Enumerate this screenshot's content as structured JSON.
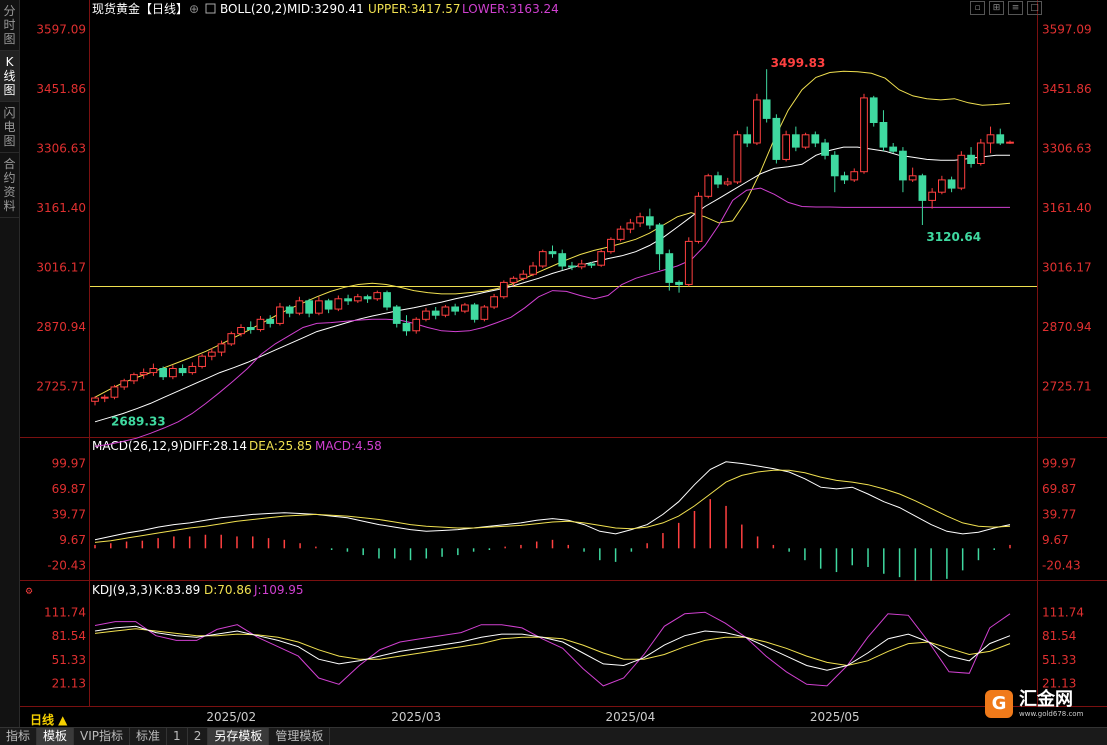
{
  "sidebar": {
    "tabs": [
      {
        "label": "分时图",
        "active": false
      },
      {
        "label": "K线图",
        "active": true
      },
      {
        "label": "闪电图",
        "active": false
      },
      {
        "label": "合约资料",
        "active": false
      }
    ]
  },
  "header": {
    "instrument": "现货黄金【日线】",
    "boll": "BOLL(20,2)",
    "mid": "MID:3290.41",
    "upper": "UPPER:3417.57",
    "lower": "LOWER:3163.24"
  },
  "macd_header": {
    "name": "MACD(26,12,9)",
    "diff": "DIFF:28.14",
    "dea": "DEA:25.85",
    "macd": "MACD:4.58"
  },
  "kdj_header": {
    "name": "KDJ(9,3,3)",
    "k": "K:83.89",
    "d": "D:70.86",
    "j": "J:109.95"
  },
  "period_label": "日线 ▲",
  "bottom_tabs": [
    {
      "label": "指标",
      "active": false
    },
    {
      "label": "模板",
      "active": true
    },
    {
      "label": "VIP指标",
      "active": false
    },
    {
      "label": "标准",
      "active": false
    },
    {
      "label": "1",
      "active": false
    },
    {
      "label": "2",
      "active": false
    },
    {
      "label": "另存模板",
      "active": true
    },
    {
      "label": "管理模板",
      "active": false
    }
  ],
  "logo": {
    "badge": "G",
    "name": "汇金网",
    "url": "www.gold678.com"
  },
  "colors": {
    "up": "#ff4040",
    "down": "#3fd9a0",
    "upper": "#f0e050",
    "mid": "#ffffff",
    "lower": "#d040d0",
    "diff": "#ffffff",
    "dea": "#f0e050",
    "k": "#ffffff",
    "d": "#f0e050",
    "j": "#d040d0",
    "axis": "#e03030"
  },
  "chart_data": [
    {
      "type": "candlestick",
      "title": "现货黄金【日线】",
      "ylim": [
        2620,
        3620
      ],
      "yticks": [
        "3597.09",
        "3451.86",
        "3306.63",
        "3161.40",
        "3016.17",
        "2870.94",
        "2725.71"
      ],
      "xticks": [
        "2025/02",
        "2025/03",
        "2025/04",
        "2025/05"
      ],
      "annotations": {
        "high": "3499.83",
        "low_start": "2689.33",
        "low_recent": "3120.64"
      },
      "hline": 2970,
      "candles": [
        [
          2690,
          2698,
          2680,
          2702
        ],
        [
          2698,
          2700,
          2688,
          2706
        ],
        [
          2700,
          2725,
          2695,
          2730
        ],
        [
          2725,
          2740,
          2718,
          2745
        ],
        [
          2740,
          2755,
          2732,
          2760
        ],
        [
          2755,
          2760,
          2745,
          2770
        ],
        [
          2760,
          2770,
          2752,
          2782
        ],
        [
          2770,
          2750,
          2742,
          2775
        ],
        [
          2750,
          2770,
          2744,
          2778
        ],
        [
          2770,
          2760,
          2752,
          2780
        ],
        [
          2760,
          2775,
          2755,
          2785
        ],
        [
          2775,
          2800,
          2770,
          2805
        ],
        [
          2800,
          2810,
          2790,
          2820
        ],
        [
          2810,
          2830,
          2800,
          2838
        ],
        [
          2830,
          2855,
          2825,
          2860
        ],
        [
          2855,
          2870,
          2848,
          2878
        ],
        [
          2870,
          2865,
          2855,
          2885
        ],
        [
          2865,
          2890,
          2860,
          2898
        ],
        [
          2890,
          2880,
          2870,
          2900
        ],
        [
          2880,
          2920,
          2875,
          2930
        ],
        [
          2920,
          2905,
          2895,
          2925
        ],
        [
          2905,
          2935,
          2900,
          2945
        ],
        [
          2935,
          2905,
          2895,
          2940
        ],
        [
          2905,
          2935,
          2900,
          2945
        ],
        [
          2935,
          2915,
          2905,
          2940
        ],
        [
          2915,
          2940,
          2910,
          2948
        ],
        [
          2940,
          2935,
          2925,
          2950
        ],
        [
          2935,
          2945,
          2930,
          2952
        ],
        [
          2945,
          2940,
          2930,
          2950
        ],
        [
          2940,
          2955,
          2935,
          2960
        ],
        [
          2955,
          2920,
          2912,
          2960
        ],
        [
          2920,
          2880,
          2870,
          2925
        ],
        [
          2880,
          2862,
          2850,
          2900
        ],
        [
          2862,
          2890,
          2855,
          2895
        ],
        [
          2890,
          2910,
          2885,
          2918
        ],
        [
          2910,
          2900,
          2890,
          2920
        ],
        [
          2900,
          2920,
          2895,
          2925
        ],
        [
          2920,
          2910,
          2900,
          2928
        ],
        [
          2910,
          2925,
          2905,
          2930
        ],
        [
          2925,
          2890,
          2882,
          2930
        ],
        [
          2890,
          2920,
          2885,
          2925
        ],
        [
          2920,
          2945,
          2915,
          2952
        ],
        [
          2945,
          2980,
          2940,
          2985
        ],
        [
          2980,
          2990,
          2972,
          2995
        ],
        [
          2990,
          3000,
          2985,
          3010
        ],
        [
          3000,
          3020,
          2995,
          3030
        ],
        [
          3020,
          3055,
          3015,
          3060
        ],
        [
          3055,
          3050,
          3040,
          3070
        ],
        [
          3050,
          3020,
          3010,
          3060
        ],
        [
          3020,
          3018,
          3010,
          3030
        ],
        [
          3018,
          3025,
          3012,
          3035
        ],
        [
          3025,
          3022,
          3015,
          3030
        ],
        [
          3022,
          3055,
          3018,
          3060
        ],
        [
          3055,
          3085,
          3050,
          3090
        ],
        [
          3085,
          3110,
          3080,
          3118
        ],
        [
          3110,
          3125,
          3100,
          3135
        ],
        [
          3125,
          3140,
          3115,
          3150
        ],
        [
          3140,
          3120,
          3110,
          3160
        ],
        [
          3120,
          3050,
          3010,
          3125
        ],
        [
          3050,
          2980,
          2960,
          3060
        ],
        [
          2980,
          2975,
          2955,
          2985
        ],
        [
          2975,
          3080,
          2970,
          3090
        ],
        [
          3080,
          3190,
          3075,
          3200
        ],
        [
          3190,
          3240,
          3185,
          3245
        ],
        [
          3240,
          3220,
          3210,
          3250
        ],
        [
          3220,
          3225,
          3215,
          3235
        ],
        [
          3225,
          3340,
          3220,
          3350
        ],
        [
          3340,
          3320,
          3310,
          3360
        ],
        [
          3320,
          3425,
          3315,
          3440
        ],
        [
          3425,
          3380,
          3370,
          3500
        ],
        [
          3380,
          3280,
          3270,
          3390
        ],
        [
          3280,
          3340,
          3275,
          3350
        ],
        [
          3340,
          3310,
          3300,
          3360
        ],
        [
          3310,
          3340,
          3305,
          3345
        ],
        [
          3340,
          3320,
          3310,
          3348
        ],
        [
          3320,
          3290,
          3280,
          3330
        ],
        [
          3290,
          3240,
          3200,
          3300
        ],
        [
          3240,
          3230,
          3220,
          3250
        ],
        [
          3230,
          3250,
          3225,
          3258
        ],
        [
          3250,
          3430,
          3245,
          3440
        ],
        [
          3430,
          3370,
          3360,
          3435
        ],
        [
          3370,
          3310,
          3300,
          3400
        ],
        [
          3310,
          3300,
          3295,
          3320
        ],
        [
          3300,
          3230,
          3200,
          3310
        ],
        [
          3230,
          3240,
          3225,
          3260
        ],
        [
          3240,
          3180,
          3120,
          3245
        ],
        [
          3180,
          3200,
          3160,
          3210
        ],
        [
          3200,
          3230,
          3195,
          3240
        ],
        [
          3230,
          3210,
          3200,
          3238
        ],
        [
          3210,
          3290,
          3205,
          3300
        ],
        [
          3290,
          3270,
          3260,
          3310
        ],
        [
          3270,
          3320,
          3265,
          3330
        ],
        [
          3320,
          3340,
          3295,
          3360
        ],
        [
          3340,
          3320,
          3315,
          3355
        ],
        [
          3320,
          3322,
          3318,
          3326
        ]
      ],
      "boll_upper": [
        2700,
        2718,
        2735,
        2748,
        2760,
        2772,
        2785,
        2798,
        2812,
        2828,
        2845,
        2862,
        2880,
        2898,
        2915,
        2930,
        2945,
        2958,
        2968,
        2975,
        2978,
        2975,
        2968,
        2960,
        2955,
        2952,
        2952,
        2955,
        2958,
        2965,
        2975,
        2990,
        3005,
        3020,
        3035,
        3048,
        3058,
        3066,
        3075,
        3085,
        3100,
        3120,
        3140,
        3150,
        3140,
        3125,
        3130,
        3180,
        3250,
        3330,
        3400,
        3450,
        3480,
        3492,
        3495,
        3494,
        3490,
        3478,
        3450,
        3435,
        3428,
        3425,
        3428,
        3418,
        3412,
        3414,
        3417
      ],
      "boll_mid": [
        2640,
        2650,
        2660,
        2672,
        2685,
        2700,
        2715,
        2730,
        2745,
        2760,
        2772,
        2785,
        2800,
        2815,
        2830,
        2845,
        2860,
        2870,
        2880,
        2890,
        2898,
        2905,
        2912,
        2918,
        2925,
        2932,
        2940,
        2947,
        2955,
        2962,
        2970,
        2980,
        2990,
        3002,
        3012,
        3022,
        3030,
        3038,
        3045,
        3055,
        3070,
        3090,
        3115,
        3140,
        3165,
        3185,
        3205,
        3225,
        3245,
        3258,
        3262,
        3268,
        3290,
        3302,
        3310,
        3310,
        3305,
        3300,
        3290,
        3285,
        3280,
        3278,
        3278,
        3282,
        3286,
        3290,
        3290
      ],
      "boll_lower": [
        2580,
        2585,
        2592,
        2600,
        2612,
        2625,
        2640,
        2660,
        2685,
        2712,
        2740,
        2770,
        2805,
        2830,
        2850,
        2870,
        2880,
        2882,
        2885,
        2888,
        2890,
        2890,
        2888,
        2880,
        2870,
        2862,
        2860,
        2862,
        2870,
        2882,
        2895,
        2918,
        2945,
        2960,
        2958,
        2948,
        2940,
        2948,
        2975,
        2990,
        3000,
        3010,
        3020,
        3035,
        3070,
        3120,
        3180,
        3205,
        3210,
        3195,
        3175,
        3165,
        3164,
        3164,
        3163,
        3163,
        3163,
        3163,
        3163,
        3163,
        3163,
        3163,
        3163,
        3163,
        3163,
        3163,
        3163
      ],
      "macd": {
        "ylim": [
          -35,
          110
        ],
        "yticks": [
          "99.97",
          "69.87",
          "39.77",
          "9.67",
          "-20.43"
        ],
        "diff": [
          10,
          14,
          18,
          21,
          25,
          28,
          30,
          33,
          36,
          38,
          40,
          41,
          42,
          41,
          40,
          38,
          36,
          32,
          28,
          25,
          22,
          20,
          21,
          22,
          24,
          26,
          28,
          30,
          33,
          35,
          33,
          28,
          20,
          17,
          22,
          28,
          40,
          55,
          75,
          93,
          102,
          100,
          97,
          94,
          90,
          82,
          72,
          70,
          72,
          64,
          55,
          48,
          38,
          28,
          20,
          17,
          19,
          24,
          28
        ],
        "dea": [
          7,
          9,
          12,
          15,
          18,
          21,
          24,
          26,
          29,
          32,
          34,
          36,
          38,
          39,
          40,
          39,
          38,
          36,
          34,
          31,
          28,
          26,
          25,
          24,
          24,
          25,
          26,
          27,
          29,
          31,
          32,
          30,
          27,
          24,
          23,
          25,
          30,
          38,
          50,
          64,
          78,
          86,
          90,
          92,
          92,
          89,
          84,
          80,
          78,
          75,
          70,
          64,
          56,
          47,
          38,
          30,
          26,
          25,
          26
        ],
        "hist": [
          4,
          6,
          8,
          9,
          12,
          14,
          14,
          16,
          16,
          14,
          14,
          12,
          10,
          6,
          2,
          -2,
          -4,
          -8,
          -12,
          -12,
          -14,
          -12,
          -10,
          -8,
          -4,
          -2,
          2,
          4,
          8,
          10,
          4,
          -4,
          -14,
          -16,
          -4,
          6,
          18,
          30,
          44,
          58,
          50,
          28,
          14,
          4,
          -4,
          -14,
          -24,
          -28,
          -20,
          -22,
          -30,
          -34,
          -38,
          -38,
          -36,
          -26,
          -14,
          -2,
          4
        ]
      },
      "kdj": {
        "ylim": [
          0,
          125
        ],
        "yticks": [
          "111.74",
          "81.54",
          "51.33",
          "21.13"
        ],
        "k": [
          88,
          92,
          94,
          86,
          82,
          80,
          84,
          88,
          82,
          76,
          68,
          52,
          46,
          50,
          56,
          62,
          66,
          70,
          74,
          80,
          84,
          84,
          80,
          74,
          60,
          46,
          44,
          54,
          70,
          82,
          88,
          86,
          80,
          68,
          56,
          44,
          38,
          44,
          60,
          78,
          84,
          74,
          56,
          50,
          72,
          82
        ],
        "d": [
          85,
          88,
          91,
          88,
          85,
          82,
          82,
          84,
          83,
          80,
          74,
          64,
          56,
          52,
          52,
          56,
          60,
          64,
          68,
          72,
          78,
          80,
          80,
          78,
          70,
          60,
          52,
          52,
          58,
          68,
          76,
          80,
          80,
          74,
          66,
          56,
          48,
          44,
          50,
          62,
          72,
          74,
          66,
          58,
          62,
          72
        ],
        "j": [
          95,
          100,
          100,
          82,
          76,
          76,
          90,
          96,
          80,
          68,
          56,
          28,
          20,
          44,
          64,
          74,
          78,
          82,
          86,
          96,
          96,
          92,
          78,
          66,
          40,
          18,
          28,
          58,
          94,
          110,
          112,
          98,
          80,
          56,
          36,
          20,
          18,
          44,
          80,
          110,
          108,
          74,
          36,
          34,
          92,
          110
        ]
      }
    }
  ]
}
